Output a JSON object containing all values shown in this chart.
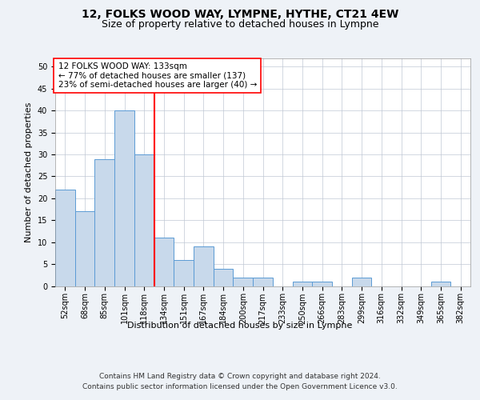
{
  "title1": "12, FOLKS WOOD WAY, LYMPNE, HYTHE, CT21 4EW",
  "title2": "Size of property relative to detached houses in Lympne",
  "xlabel": "Distribution of detached houses by size in Lympne",
  "ylabel": "Number of detached properties",
  "categories": [
    "52sqm",
    "68sqm",
    "85sqm",
    "101sqm",
    "118sqm",
    "134sqm",
    "151sqm",
    "167sqm",
    "184sqm",
    "200sqm",
    "217sqm",
    "233sqm",
    "250sqm",
    "266sqm",
    "283sqm",
    "299sqm",
    "316sqm",
    "332sqm",
    "349sqm",
    "365sqm",
    "382sqm"
  ],
  "values": [
    22,
    17,
    29,
    40,
    30,
    11,
    6,
    9,
    4,
    2,
    2,
    0,
    1,
    1,
    0,
    2,
    0,
    0,
    0,
    1,
    0
  ],
  "bar_color": "#c8d9eb",
  "bar_edge_color": "#5b9bd5",
  "vline_x_index": 5,
  "vline_color": "red",
  "annotation_text": "12 FOLKS WOOD WAY: 133sqm\n← 77% of detached houses are smaller (137)\n23% of semi-detached houses are larger (40) →",
  "annotation_box_color": "white",
  "annotation_box_edge_color": "red",
  "ylim": [
    0,
    52
  ],
  "yticks": [
    0,
    5,
    10,
    15,
    20,
    25,
    30,
    35,
    40,
    45,
    50
  ],
  "footer1": "Contains HM Land Registry data © Crown copyright and database right 2024.",
  "footer2": "Contains public sector information licensed under the Open Government Licence v3.0.",
  "background_color": "#eef2f7",
  "plot_bg_color": "white",
  "title1_fontsize": 10,
  "title2_fontsize": 9,
  "axis_label_fontsize": 8,
  "tick_fontsize": 7,
  "annotation_fontsize": 7.5,
  "footer_fontsize": 6.5
}
